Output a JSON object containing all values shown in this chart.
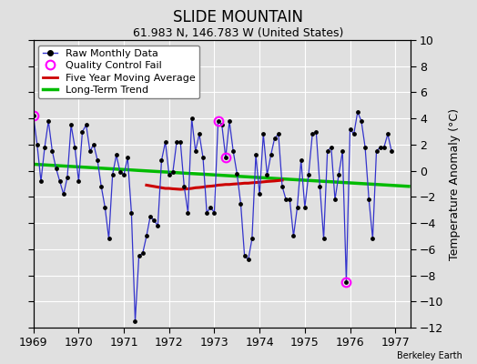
{
  "title": "SLIDE MOUNTAIN",
  "subtitle": "61.983 N, 146.783 W (United States)",
  "ylabel": "Temperature Anomaly (°C)",
  "credit": "Berkeley Earth",
  "ylim": [
    -12,
    10
  ],
  "yticks": [
    -12,
    -10,
    -8,
    -6,
    -4,
    -2,
    0,
    2,
    4,
    6,
    8,
    10
  ],
  "xlim_start": 1969.0,
  "xlim_end": 1977.33,
  "xticks": [
    1969,
    1970,
    1971,
    1972,
    1973,
    1974,
    1975,
    1976,
    1977
  ],
  "bg_color": "#e0e0e0",
  "plot_bg_color": "#e0e0e0",
  "grid_color": "#ffffff",
  "raw_color": "#3333cc",
  "ma_color": "#cc0000",
  "trend_color": "#00bb00",
  "qc_color": "#ff00ff",
  "raw_monthly": {
    "times": [
      1969.0,
      1969.083,
      1969.167,
      1969.25,
      1969.333,
      1969.417,
      1969.5,
      1969.583,
      1969.667,
      1969.75,
      1969.833,
      1969.917,
      1970.0,
      1970.083,
      1970.167,
      1970.25,
      1970.333,
      1970.417,
      1970.5,
      1970.583,
      1970.667,
      1970.75,
      1970.833,
      1970.917,
      1971.0,
      1971.083,
      1971.167,
      1971.25,
      1971.333,
      1971.417,
      1971.5,
      1971.583,
      1971.667,
      1971.75,
      1971.833,
      1971.917,
      1972.0,
      1972.083,
      1972.167,
      1972.25,
      1972.333,
      1972.417,
      1972.5,
      1972.583,
      1972.667,
      1972.75,
      1972.833,
      1972.917,
      1973.0,
      1973.083,
      1973.167,
      1973.25,
      1973.333,
      1973.417,
      1973.5,
      1973.583,
      1973.667,
      1973.75,
      1973.833,
      1973.917,
      1974.0,
      1974.083,
      1974.167,
      1974.25,
      1974.333,
      1974.417,
      1974.5,
      1974.583,
      1974.667,
      1974.75,
      1974.833,
      1974.917,
      1975.0,
      1975.083,
      1975.167,
      1975.25,
      1975.333,
      1975.417,
      1975.5,
      1975.583,
      1975.667,
      1975.75,
      1975.833,
      1975.917,
      1976.0,
      1976.083,
      1976.167,
      1976.25,
      1976.333,
      1976.417,
      1976.5,
      1976.583,
      1976.667,
      1976.75,
      1976.833,
      1976.917
    ],
    "values": [
      4.2,
      2.0,
      -0.8,
      1.8,
      3.8,
      1.5,
      0.2,
      -0.8,
      -1.8,
      -0.5,
      3.5,
      1.8,
      -0.8,
      3.0,
      3.5,
      1.5,
      2.0,
      0.8,
      -1.2,
      -2.8,
      -5.2,
      -0.3,
      1.2,
      -0.1,
      -0.3,
      1.0,
      -3.2,
      -11.5,
      -6.5,
      -6.3,
      -5.0,
      -3.5,
      -3.8,
      -4.2,
      0.8,
      2.2,
      -0.3,
      -0.1,
      2.2,
      2.2,
      -1.2,
      -3.2,
      4.0,
      1.5,
      2.8,
      1.0,
      -3.2,
      -2.8,
      -3.2,
      3.8,
      3.5,
      1.0,
      3.8,
      1.5,
      -0.2,
      -2.5,
      -6.5,
      -6.8,
      -5.2,
      1.2,
      -1.8,
      2.8,
      -0.3,
      1.2,
      2.5,
      2.8,
      -1.2,
      -2.2,
      -2.2,
      -5.0,
      -2.8,
      0.8,
      -2.8,
      -0.3,
      2.8,
      3.0,
      -1.2,
      -5.2,
      1.5,
      1.8,
      -2.2,
      -0.3,
      1.5,
      -8.5,
      3.2,
      2.8,
      4.5,
      3.8,
      1.8,
      -2.2,
      -5.2,
      1.5,
      1.8,
      1.8,
      2.8,
      1.5
    ]
  },
  "qc_fails": [
    {
      "time": 1969.0,
      "value": 4.2
    },
    {
      "time": 1973.083,
      "value": 3.8
    },
    {
      "time": 1973.25,
      "value": 1.0
    },
    {
      "time": 1975.917,
      "value": -8.5
    }
  ],
  "moving_avg": {
    "times": [
      1971.5,
      1971.583,
      1971.667,
      1971.75,
      1971.833,
      1971.917,
      1972.0,
      1972.083,
      1972.167,
      1972.25,
      1972.333,
      1972.417,
      1972.5,
      1972.583,
      1972.667,
      1972.75,
      1972.833,
      1972.917,
      1973.0,
      1973.083,
      1973.167,
      1973.25,
      1973.333,
      1973.417,
      1973.5,
      1973.583,
      1973.667,
      1973.75,
      1973.833,
      1973.917,
      1974.0,
      1974.083,
      1974.167,
      1974.25,
      1974.333,
      1974.417,
      1974.5
    ],
    "values": [
      -1.1,
      -1.15,
      -1.2,
      -1.25,
      -1.3,
      -1.35,
      -1.35,
      -1.38,
      -1.4,
      -1.42,
      -1.4,
      -1.38,
      -1.35,
      -1.3,
      -1.28,
      -1.25,
      -1.2,
      -1.18,
      -1.15,
      -1.1,
      -1.08,
      -1.05,
      -1.05,
      -1.02,
      -1.0,
      -0.98,
      -0.95,
      -0.95,
      -0.92,
      -0.9,
      -0.88,
      -0.85,
      -0.82,
      -0.8,
      -0.78,
      -0.75,
      -0.72
    ]
  },
  "trend": {
    "times": [
      1969.0,
      1977.33
    ],
    "values": [
      0.5,
      -1.2
    ]
  },
  "title_fontsize": 12,
  "subtitle_fontsize": 9,
  "tick_fontsize": 9,
  "legend_fontsize": 8,
  "credit_fontsize": 7
}
